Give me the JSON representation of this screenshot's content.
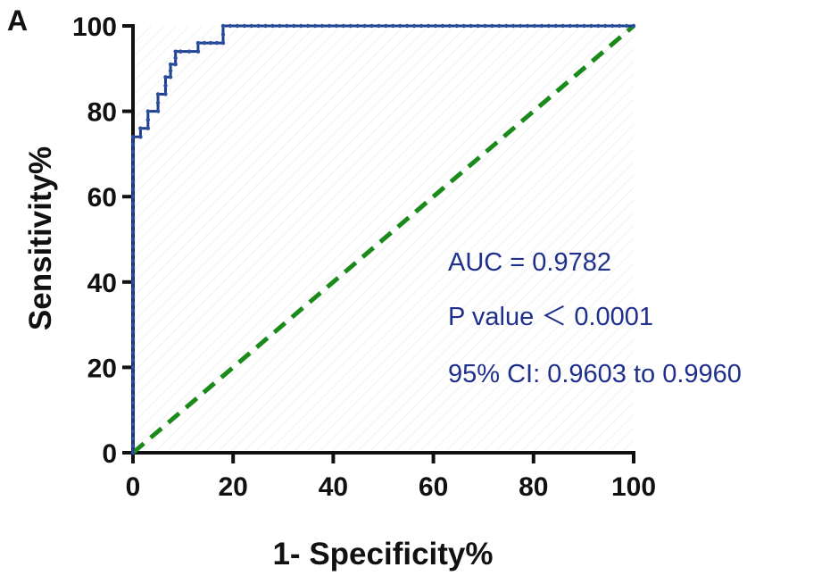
{
  "panel_label": "A",
  "chart_data": {
    "type": "line",
    "xlabel": "1- Specificity%",
    "ylabel": "Sensitivity%",
    "xlim": [
      0,
      100
    ],
    "ylim": [
      0,
      100
    ],
    "xticks": [
      "0",
      "20",
      "40",
      "60",
      "80",
      "100"
    ],
    "yticks": [
      "0",
      "20",
      "40",
      "60",
      "80",
      "100"
    ],
    "grid": false,
    "series": [
      {
        "color": "#1f3f8c",
        "style": "solid-with-markers",
        "x": [
          0,
          0,
          0,
          0,
          0,
          1.5,
          1.5,
          3,
          3,
          5,
          5,
          6.5,
          6.5,
          7.5,
          7.5,
          8.5,
          8.5,
          9.5,
          9.5,
          13,
          13,
          18,
          18,
          100
        ],
        "y": [
          0,
          20,
          30,
          60,
          74,
          74,
          76,
          76,
          80,
          80,
          84,
          84,
          88,
          88,
          91,
          91,
          94,
          94,
          94,
          94,
          96,
          96,
          100,
          100
        ]
      },
      {
        "color": "#1a8a1a",
        "style": "dashed",
        "x": [
          0,
          100
        ],
        "y": [
          0,
          100
        ]
      }
    ],
    "annotations": [
      "AUC = 0.9782",
      "P value ＜ 0.0001",
      "95% CI: 0.9603 to 0.9960"
    ]
  }
}
